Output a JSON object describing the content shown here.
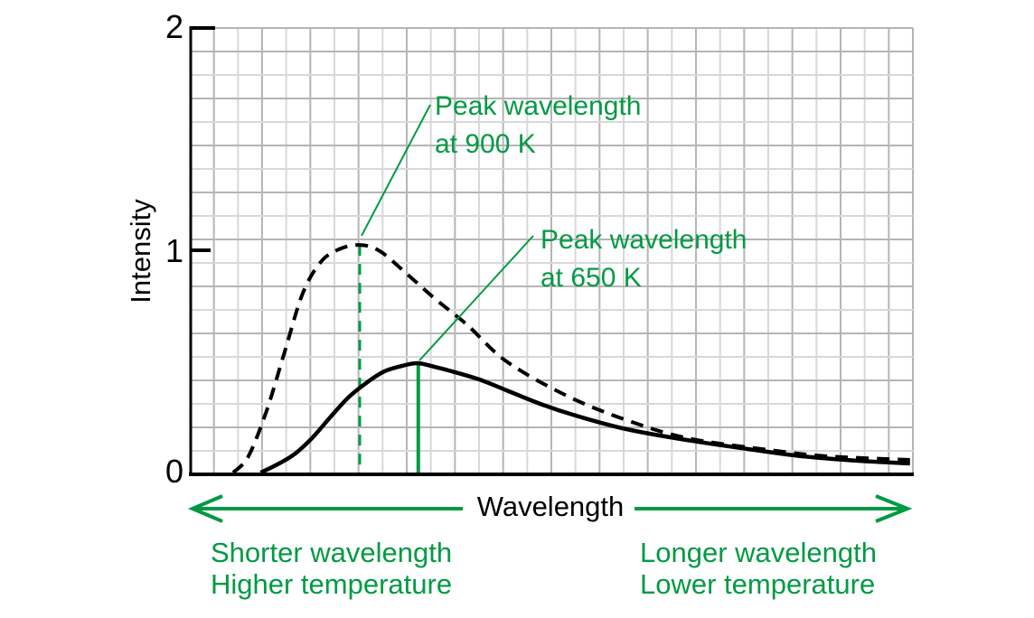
{
  "colors": {
    "accent_green": "#009a44",
    "curve_black": "#000000",
    "grid_light": "#d8d8d8",
    "grid_dark": "#b5b5b5",
    "background": "#ffffff"
  },
  "chart_data": {
    "type": "line",
    "title": "",
    "xlabel": "Wavelength",
    "ylabel": "Intensity",
    "ylim": [
      0,
      2
    ],
    "yticks": [
      2,
      1,
      0
    ],
    "ytick_labels": [
      "2",
      "1",
      "0"
    ],
    "x_axis_numeric_scale_shown": false,
    "x_unit": "fraction of plotted wavelength axis (0 to 1)",
    "grid": true,
    "legend_position": "none",
    "series": [
      {
        "name": "900 K",
        "style": "dashed",
        "color": "#000000",
        "peak": {
          "x": 0.235,
          "intensity": 1.03
        },
        "points": [
          [
            0.06,
            0.004
          ],
          [
            0.081,
            0.077
          ],
          [
            0.106,
            0.28
          ],
          [
            0.131,
            0.545
          ],
          [
            0.156,
            0.809
          ],
          [
            0.181,
            0.951
          ],
          [
            0.206,
            1.008
          ],
          [
            0.235,
            1.028
          ],
          [
            0.263,
            1.0
          ],
          [
            0.3,
            0.898
          ],
          [
            0.338,
            0.789
          ],
          [
            0.384,
            0.667
          ],
          [
            0.438,
            0.504
          ],
          [
            0.521,
            0.35
          ],
          [
            0.604,
            0.24
          ],
          [
            0.688,
            0.159
          ],
          [
            0.8,
            0.106
          ],
          [
            0.884,
            0.077
          ],
          [
            0.996,
            0.061
          ]
        ]
      },
      {
        "name": "650 K",
        "style": "solid",
        "color": "#000000",
        "peak": {
          "x": 0.316,
          "intensity": 0.5
        },
        "points": [
          [
            0.098,
            0.004
          ],
          [
            0.119,
            0.037
          ],
          [
            0.144,
            0.085
          ],
          [
            0.169,
            0.159
          ],
          [
            0.194,
            0.252
          ],
          [
            0.219,
            0.341
          ],
          [
            0.244,
            0.407
          ],
          [
            0.269,
            0.459
          ],
          [
            0.294,
            0.484
          ],
          [
            0.315,
            0.496
          ],
          [
            0.338,
            0.48
          ],
          [
            0.363,
            0.459
          ],
          [
            0.4,
            0.423
          ],
          [
            0.438,
            0.374
          ],
          [
            0.488,
            0.309
          ],
          [
            0.538,
            0.256
          ],
          [
            0.604,
            0.199
          ],
          [
            0.688,
            0.15
          ],
          [
            0.771,
            0.11
          ],
          [
            0.848,
            0.077
          ],
          [
            0.925,
            0.057
          ],
          [
            0.996,
            0.045
          ]
        ]
      }
    ],
    "peak_markers": [
      {
        "series": "900 K",
        "x": 0.235,
        "top_intensity": 1.028,
        "line_style": "dashed",
        "color": "#009a44"
      },
      {
        "series": "650 K",
        "x": 0.316,
        "top_intensity": 0.492,
        "line_style": "solid",
        "color": "#009a44"
      }
    ],
    "annotations": [
      {
        "line1": "Peak wavelength",
        "line2": "at 900 K",
        "color": "#009a44"
      },
      {
        "line1": "Peak wavelength",
        "line2": "at 650 K",
        "color": "#009a44"
      }
    ],
    "x_arrow": {
      "style": "double-headed",
      "color": "#009a44"
    },
    "direction_captions": {
      "left": {
        "line1": "Shorter wavelength",
        "line2": "Higher temperature",
        "color": "#009a44"
      },
      "right": {
        "line1": "Longer wavelength",
        "line2": "Lower temperature",
        "color": "#009a44"
      }
    }
  }
}
